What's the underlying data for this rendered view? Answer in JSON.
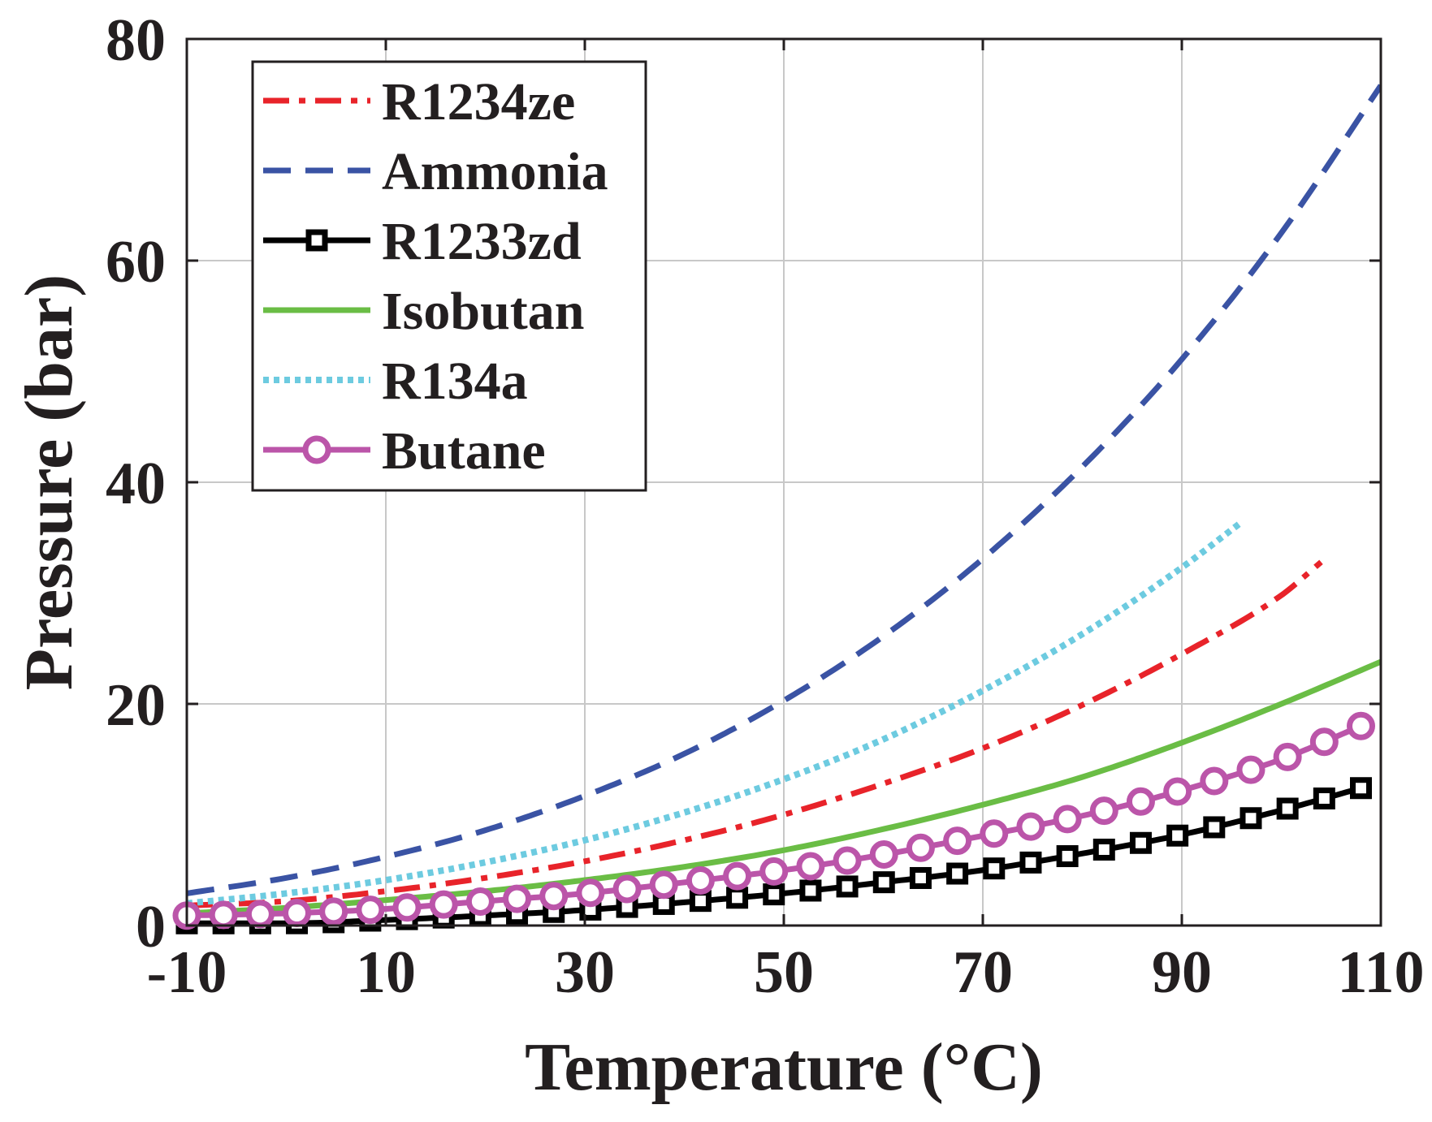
{
  "chart_data": {
    "type": "line",
    "xlabel": "Temperature (°C)",
    "ylabel": "Pressure (bar)",
    "xlim": [
      -10,
      110
    ],
    "ylim": [
      0,
      80
    ],
    "xticks": [
      "-10",
      "10",
      "30",
      "50",
      "70",
      "90",
      "110"
    ],
    "yticks": [
      "0",
      "20",
      "40",
      "60",
      "80"
    ],
    "grid": true,
    "legend_position": "top-left",
    "series": [
      {
        "name": "R1234ze",
        "color": "#e8232a",
        "style": "dashdot",
        "marker": "none",
        "x": [
          -10,
          0,
          10,
          20,
          30,
          40,
          50,
          60,
          70,
          80,
          90,
          100,
          104
        ],
        "y": [
          1.8,
          2.2,
          3.1,
          4.3,
          5.8,
          7.7,
          10.0,
          12.8,
          16.0,
          19.9,
          24.5,
          29.8,
          32.8
        ]
      },
      {
        "name": "Ammonia",
        "color": "#3a53a4",
        "style": "dashed",
        "marker": "none",
        "x": [
          -10,
          0,
          10,
          20,
          30,
          40,
          50,
          60,
          70,
          80,
          90,
          100,
          110
        ],
        "y": [
          2.9,
          4.3,
          6.2,
          8.6,
          11.7,
          15.5,
          20.3,
          26.1,
          33.1,
          41.4,
          51.1,
          62.5,
          75.8
        ]
      },
      {
        "name": "R1233zd",
        "color": "#000000",
        "style": "solid",
        "marker": "square",
        "x": [
          -10,
          0,
          10,
          20,
          30,
          40,
          50,
          60,
          70,
          80,
          90,
          100,
          108
        ],
        "y": [
          0.2,
          0.2,
          0.5,
          0.9,
          1.4,
          2.1,
          2.9,
          3.9,
          5.0,
          6.5,
          8.2,
          10.4,
          12.4
        ]
      },
      {
        "name": "Isobutan",
        "color": "#6abd45",
        "style": "solid",
        "marker": "none",
        "x": [
          -10,
          0,
          10,
          20,
          30,
          40,
          50,
          60,
          70,
          80,
          90,
          100,
          110
        ],
        "y": [
          1.1,
          1.6,
          2.3,
          3.1,
          4.1,
          5.3,
          6.8,
          8.7,
          10.9,
          13.4,
          16.5,
          20.0,
          23.8
        ]
      },
      {
        "name": "R134a",
        "color": "#6dcbe0",
        "style": "dotted",
        "marker": "none",
        "x": [
          -10,
          0,
          10,
          20,
          30,
          40,
          50,
          60,
          70,
          80,
          90,
          96
        ],
        "y": [
          2.0,
          2.9,
          4.1,
          5.7,
          7.7,
          10.2,
          13.2,
          16.8,
          21.2,
          26.3,
          32.3,
          36.4
        ]
      },
      {
        "name": "Butane",
        "color": "#bb55a9",
        "style": "solid",
        "marker": "circle",
        "x": [
          -10,
          0,
          10,
          20,
          30,
          40,
          50,
          60,
          70,
          80,
          90,
          100,
          108
        ],
        "y": [
          0.9,
          1.1,
          1.5,
          2.2,
          2.9,
          3.9,
          5.0,
          6.4,
          8.1,
          9.9,
          12.2,
          15.0,
          18.0
        ]
      }
    ]
  }
}
